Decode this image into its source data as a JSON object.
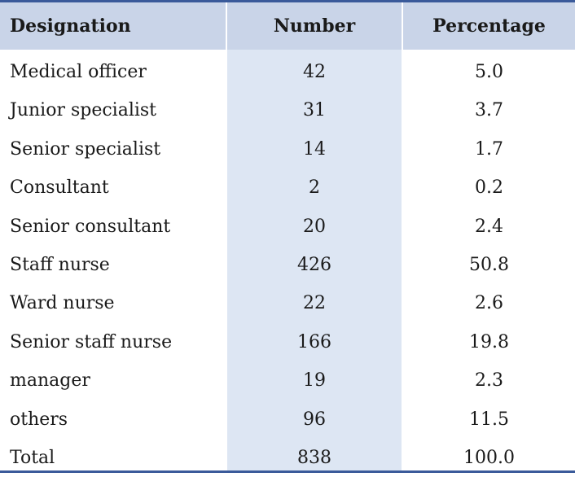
{
  "table": {
    "headers": {
      "designation": "Designation",
      "number": "Number",
      "percentage": "Percentage"
    },
    "rows": [
      {
        "designation": "Medical officer",
        "number": "42",
        "percentage": "5.0"
      },
      {
        "designation": "Junior specialist",
        "number": "31",
        "percentage": "3.7"
      },
      {
        "designation": "Senior specialist",
        "number": "14",
        "percentage": "1.7"
      },
      {
        "designation": "Consultant",
        "number": "2",
        "percentage": "0.2"
      },
      {
        "designation": "Senior consultant",
        "number": "20",
        "percentage": "2.4"
      },
      {
        "designation": "Staff nurse",
        "number": "426",
        "percentage": "50.8"
      },
      {
        "designation": "Ward nurse",
        "number": "22",
        "percentage": "2.6"
      },
      {
        "designation": "Senior staff nurse",
        "number": "166",
        "percentage": "19.8"
      },
      {
        "designation": "manager",
        "number": "19",
        "percentage": "2.3"
      },
      {
        "designation": "others",
        "number": "96",
        "percentage": "11.5"
      },
      {
        "designation": "Total",
        "number": "838",
        "percentage": "100.0"
      }
    ]
  },
  "colors": {
    "header_background": "#c9d4e8",
    "number_column_shade": "#dde6f3",
    "rule": "#3a5a9a"
  }
}
